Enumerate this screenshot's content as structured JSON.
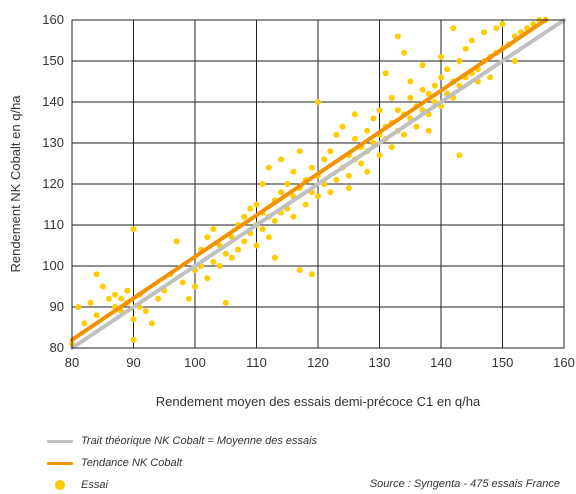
{
  "chart_data": {
    "type": "scatter",
    "xlabel": "Rendement moyen des essais demi-précoce C1 en q/ha",
    "ylabel": "Rendement NK Cobalt en q/ha",
    "xlim": [
      80,
      160
    ],
    "ylim": [
      80,
      160
    ],
    "xticks": [
      80,
      90,
      100,
      110,
      120,
      130,
      140,
      150,
      160
    ],
    "yticks": [
      80,
      90,
      100,
      110,
      120,
      130,
      140,
      150,
      160
    ],
    "grid": true,
    "legend_placement": "bottom",
    "series": [
      {
        "name": "Trait théorique NK Cobalt = Moyenne des essais",
        "kind": "line",
        "color": "#c0c0c0",
        "x": [
          80,
          160
        ],
        "y": [
          80,
          160
        ]
      },
      {
        "name": "Tendance NK Cobalt",
        "kind": "line",
        "color": "#f39200",
        "x": [
          80,
          158
        ],
        "y": [
          82,
          161
        ]
      },
      {
        "name": "Essai",
        "kind": "scatter",
        "color": "#ffcc00",
        "points": [
          [
            80,
            81
          ],
          [
            81,
            90
          ],
          [
            82,
            86
          ],
          [
            83,
            91
          ],
          [
            84,
            88
          ],
          [
            84,
            98
          ],
          [
            85,
            95
          ],
          [
            86,
            92
          ],
          [
            87,
            90
          ],
          [
            87,
            93
          ],
          [
            88,
            89
          ],
          [
            88,
            92
          ],
          [
            89,
            94
          ],
          [
            89,
            91
          ],
          [
            90,
            82
          ],
          [
            90,
            87
          ],
          [
            90,
            109
          ],
          [
            91,
            90
          ],
          [
            91,
            93
          ],
          [
            92,
            89
          ],
          [
            93,
            86
          ],
          [
            94,
            92
          ],
          [
            95,
            94
          ],
          [
            96,
            98
          ],
          [
            97,
            106
          ],
          [
            98,
            96
          ],
          [
            99,
            92
          ],
          [
            100,
            95
          ],
          [
            100,
            99
          ],
          [
            101,
            100
          ],
          [
            101,
            104
          ],
          [
            102,
            97
          ],
          [
            102,
            107
          ],
          [
            103,
            101
          ],
          [
            103,
            109
          ],
          [
            104,
            100
          ],
          [
            104,
            105
          ],
          [
            105,
            91
          ],
          [
            105,
            103
          ],
          [
            106,
            102
          ],
          [
            106,
            107
          ],
          [
            107,
            104
          ],
          [
            107,
            110
          ],
          [
            108,
            106
          ],
          [
            108,
            112
          ],
          [
            109,
            108
          ],
          [
            109,
            114
          ],
          [
            110,
            105
          ],
          [
            110,
            110
          ],
          [
            110,
            115
          ],
          [
            111,
            109
          ],
          [
            111,
            113
          ],
          [
            111,
            120
          ],
          [
            112,
            107
          ],
          [
            112,
            112
          ],
          [
            112,
            124
          ],
          [
            113,
            111
          ],
          [
            113,
            116
          ],
          [
            113,
            102
          ],
          [
            114,
            113
          ],
          [
            114,
            118
          ],
          [
            114,
            126
          ],
          [
            115,
            114
          ],
          [
            115,
            120
          ],
          [
            116,
            112
          ],
          [
            116,
            117
          ],
          [
            116,
            123
          ],
          [
            117,
            99
          ],
          [
            117,
            119
          ],
          [
            117,
            128
          ],
          [
            118,
            115
          ],
          [
            118,
            121
          ],
          [
            119,
            118
          ],
          [
            119,
            124
          ],
          [
            119,
            98
          ],
          [
            120,
            117
          ],
          [
            120,
            122
          ],
          [
            120,
            140
          ],
          [
            121,
            120
          ],
          [
            121,
            126
          ],
          [
            122,
            118
          ],
          [
            122,
            128
          ],
          [
            123,
            121
          ],
          [
            123,
            132
          ],
          [
            124,
            124
          ],
          [
            124,
            134
          ],
          [
            125,
            122
          ],
          [
            125,
            127
          ],
          [
            125,
            119
          ],
          [
            126,
            126
          ],
          [
            126,
            131
          ],
          [
            126,
            137
          ],
          [
            127,
            125
          ],
          [
            127,
            129
          ],
          [
            128,
            128
          ],
          [
            128,
            133
          ],
          [
            128,
            123
          ],
          [
            129,
            130
          ],
          [
            129,
            136
          ],
          [
            130,
            127
          ],
          [
            130,
            132
          ],
          [
            130,
            138
          ],
          [
            131,
            131
          ],
          [
            131,
            134
          ],
          [
            131,
            147
          ],
          [
            132,
            129
          ],
          [
            132,
            135
          ],
          [
            132,
            141
          ],
          [
            133,
            133
          ],
          [
            133,
            138
          ],
          [
            133,
            156
          ],
          [
            134,
            132
          ],
          [
            134,
            137
          ],
          [
            134,
            152
          ],
          [
            135,
            136
          ],
          [
            135,
            141
          ],
          [
            135,
            145
          ],
          [
            136,
            134
          ],
          [
            136,
            139
          ],
          [
            137,
            138
          ],
          [
            137,
            143
          ],
          [
            137,
            149
          ],
          [
            138,
            137
          ],
          [
            138,
            142
          ],
          [
            138,
            133
          ],
          [
            139,
            140
          ],
          [
            139,
            144
          ],
          [
            140,
            139
          ],
          [
            140,
            146
          ],
          [
            140,
            151
          ],
          [
            141,
            142
          ],
          [
            141,
            148
          ],
          [
            142,
            141
          ],
          [
            142,
            145
          ],
          [
            142,
            158
          ],
          [
            143,
            144
          ],
          [
            143,
            150
          ],
          [
            143,
            127
          ],
          [
            144,
            146
          ],
          [
            144,
            153
          ],
          [
            145,
            147
          ],
          [
            145,
            155
          ],
          [
            146,
            148
          ],
          [
            146,
            145
          ],
          [
            147,
            150
          ],
          [
            147,
            157
          ],
          [
            148,
            151
          ],
          [
            148,
            146
          ],
          [
            149,
            152
          ],
          [
            149,
            158
          ],
          [
            150,
            153
          ],
          [
            150,
            159
          ],
          [
            151,
            154
          ],
          [
            152,
            156
          ],
          [
            152,
            150
          ],
          [
            153,
            157
          ],
          [
            154,
            158
          ],
          [
            155,
            159
          ],
          [
            156,
            160
          ],
          [
            157,
            160
          ]
        ]
      }
    ]
  },
  "source": "Source : Syngenta - 475 essais France"
}
